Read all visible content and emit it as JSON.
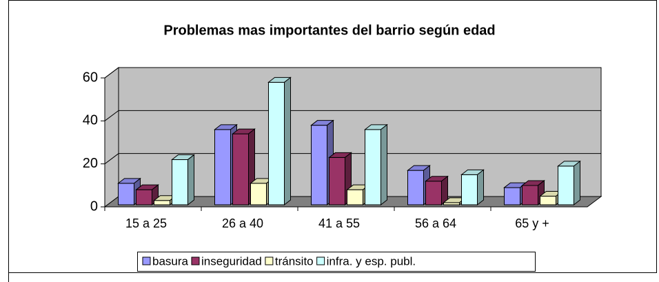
{
  "chart_data": {
    "type": "bar3d",
    "title": "Problemas mas importantes del barrio según edad",
    "categories": [
      "15  a 25",
      "26 a 40",
      "41 a 55",
      "56 a 64",
      "65 y +"
    ],
    "series": [
      {
        "name": "basura",
        "color": "#9999ff",
        "values": [
          10,
          35,
          37,
          16,
          8
        ]
      },
      {
        "name": "inseguridad",
        "color": "#993366",
        "values": [
          7,
          33,
          22,
          11,
          9
        ]
      },
      {
        "name": "tránsito",
        "color": "#ffffcc",
        "values": [
          2,
          10,
          7,
          1,
          4
        ]
      },
      {
        "name": "infra. y esp. publ.",
        "color": "#ccffff",
        "values": [
          21,
          57,
          35,
          14,
          18
        ]
      }
    ],
    "ylim": [
      0,
      60
    ],
    "yticks": [
      0,
      20,
      40,
      60
    ],
    "grid": true,
    "legend": "bottom"
  }
}
